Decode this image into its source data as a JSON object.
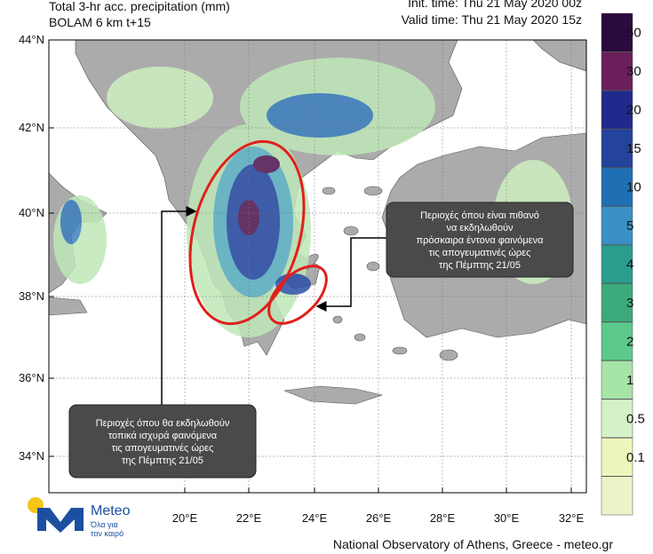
{
  "header": {
    "title": "Total 3-hr acc. precipitation (mm)",
    "model": "BOLAM 6 km t+15",
    "init_time": "Init. time: Thu 21 May 2020 00z",
    "valid_time": "Valid time: Thu 21 May 2020 15z"
  },
  "map": {
    "lat_labels": [
      "44°N",
      "42°N",
      "40°N",
      "38°N",
      "36°N",
      "34°N"
    ],
    "lon_labels": [
      "20°E",
      "22°E",
      "24°E",
      "26°E",
      "28°E",
      "30°E",
      "32°E"
    ]
  },
  "colorbar": {
    "labels": [
      50,
      30,
      20,
      15,
      10,
      5,
      4,
      3,
      2,
      1,
      0.5,
      0.1
    ]
  },
  "annotations": [
    {
      "lines": [
        "Περιοχές όπου είναι πιθανό",
        "να εκδηλωθούν",
        "πρόσκαιρα έντονα φαινόμενα",
        "τις απογευματινές ώρες",
        "της Πέμπτης 21/05"
      ]
    },
    {
      "lines": [
        "Περιοχές όπου θα εκδηλωθούν",
        "τοπικά ισχυρά φαινόμενα",
        "τις απογευματινές ώρες",
        "της Πέμπτης 21/05"
      ]
    }
  ],
  "logo": {
    "name": "Meteo",
    "tagline": [
      "Όλα για",
      "τον καιρό"
    ]
  },
  "footer": "National Observatory of Athens, Greece - meteo.gr"
}
